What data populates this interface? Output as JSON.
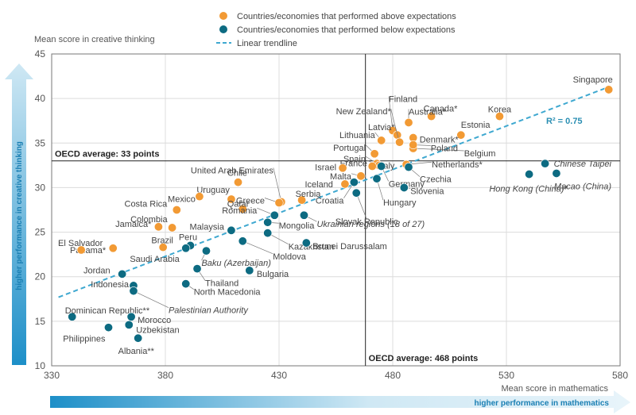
{
  "chart_data": {
    "type": "scatter",
    "ylabel": "Mean score in creative thinking",
    "xlabel": "Mean score in mathematics",
    "xlim": [
      330,
      580
    ],
    "ylim": [
      10,
      45
    ],
    "x_ticks": [
      "330",
      "380",
      "430",
      "480",
      "530",
      "580"
    ],
    "y_ticks": [
      "10",
      "15",
      "20",
      "25",
      "30",
      "35",
      "40",
      "45"
    ],
    "legend": {
      "above": "Countries/economies that performed above expectations",
      "below": "Countries/economies that performed below expectations",
      "trend": "Linear trendline"
    },
    "colors": {
      "above": "#f29a34",
      "below": "#0d6b82",
      "trend": "#3ea8d0"
    },
    "oecd_y_label": "OECD average: 33 points",
    "oecd_x_label": "OECD average: 468 points",
    "oecd_x": 468,
    "oecd_y": 33,
    "r2_label": "R² = 0.75",
    "trendline": {
      "x": [
        333,
        575
      ],
      "y": [
        17.7,
        41.3
      ]
    },
    "y_arrow_label": "higher performance in creative thinking",
    "x_arrow_label": "higher performance in mathematics",
    "points": [
      {
        "name": "Singapore",
        "x": 575,
        "y": 41,
        "group": "above"
      },
      {
        "name": "Korea",
        "x": 527,
        "y": 38,
        "group": "above"
      },
      {
        "name": "Canada*",
        "x": 497,
        "y": 38,
        "group": "above"
      },
      {
        "name": "Australia*",
        "x": 487,
        "y": 37.3,
        "group": "above"
      },
      {
        "name": "Estonia",
        "x": 510,
        "y": 35.9,
        "group": "above"
      },
      {
        "name": "Finland",
        "x": 480,
        "y": 36.4,
        "group": "above"
      },
      {
        "name": "New Zealand*",
        "x": 482,
        "y": 35.9,
        "group": "above"
      },
      {
        "name": "Latvia*",
        "x": 483,
        "y": 35.1,
        "group": "above"
      },
      {
        "name": "Denmark*",
        "x": 489,
        "y": 35.6,
        "group": "above"
      },
      {
        "name": "Belgium",
        "x": 489,
        "y": 34.4,
        "group": "above"
      },
      {
        "name": "Poland",
        "x": 489,
        "y": 34.8,
        "group": "above"
      },
      {
        "name": "Lithuania",
        "x": 475,
        "y": 35.3,
        "group": "above"
      },
      {
        "name": "Portugal",
        "x": 472,
        "y": 33.8,
        "group": "above"
      },
      {
        "name": "Spain",
        "x": 473,
        "y": 32.7,
        "group": "above"
      },
      {
        "name": "France",
        "x": 474,
        "y": 32.5,
        "group": "above"
      },
      {
        "name": "Netherlands*",
        "x": 486,
        "y": 32.6,
        "group": "above"
      },
      {
        "name": "Israel",
        "x": 458,
        "y": 32.2,
        "group": "above"
      },
      {
        "name": "Italy",
        "x": 471,
        "y": 32.4,
        "group": "above"
      },
      {
        "name": "Malta",
        "x": 466,
        "y": 31.3,
        "group": "above"
      },
      {
        "name": "Iceland",
        "x": 459,
        "y": 30.4,
        "group": "above"
      },
      {
        "name": "Chile",
        "x": 412,
        "y": 30.6,
        "group": "above"
      },
      {
        "name": "United Arab Emirates",
        "x": 431,
        "y": 28.4,
        "group": "above"
      },
      {
        "name": "Serbia",
        "x": 440,
        "y": 28.6,
        "group": "above"
      },
      {
        "name": "Uruguay",
        "x": 409,
        "y": 28.7,
        "group": "above"
      },
      {
        "name": "Greece",
        "x": 430,
        "y": 28.3,
        "group": "above"
      },
      {
        "name": "Qatar",
        "x": 414,
        "y": 27.6,
        "group": "above"
      },
      {
        "name": "Mexico",
        "x": 395,
        "y": 29,
        "group": "above"
      },
      {
        "name": "Costa Rica",
        "x": 385,
        "y": 27.5,
        "group": "above"
      },
      {
        "name": "Colombia",
        "x": 383,
        "y": 25.5,
        "group": "above"
      },
      {
        "name": "Jamaica*",
        "x": 377,
        "y": 25.6,
        "group": "above"
      },
      {
        "name": "Panama*",
        "x": 357,
        "y": 23.2,
        "group": "above"
      },
      {
        "name": "Brazil",
        "x": 379,
        "y": 23.3,
        "group": "above"
      },
      {
        "name": "El Salvador",
        "x": 343,
        "y": 23,
        "group": "above"
      },
      {
        "name": "Chinese Taipei",
        "x": 547,
        "y": 32.7,
        "group": "below"
      },
      {
        "name": "Macao (China)",
        "x": 552,
        "y": 31.6,
        "group": "below"
      },
      {
        "name": "Hong Kong (China)*",
        "x": 540,
        "y": 31.5,
        "group": "below"
      },
      {
        "name": "Czechia",
        "x": 487,
        "y": 32.3,
        "group": "below"
      },
      {
        "name": "Germany",
        "x": 475,
        "y": 32.4,
        "group": "below"
      },
      {
        "name": "Hungary",
        "x": 473,
        "y": 31,
        "group": "below"
      },
      {
        "name": "Slovenia",
        "x": 485,
        "y": 30,
        "group": "below"
      },
      {
        "name": "Croatia",
        "x": 463,
        "y": 30.6,
        "group": "below"
      },
      {
        "name": "Slovak Republic",
        "x": 464,
        "y": 29.4,
        "group": "below"
      },
      {
        "name": "Ukrainian regions (18 of 27)",
        "x": 441,
        "y": 26.9,
        "group": "below"
      },
      {
        "name": "Romania",
        "x": 428,
        "y": 26.9,
        "group": "below"
      },
      {
        "name": "Mongolia",
        "x": 425,
        "y": 26.1,
        "group": "below"
      },
      {
        "name": "Malaysia",
        "x": 409,
        "y": 25.2,
        "group": "below"
      },
      {
        "name": "Peru",
        "x": 391,
        "y": 23.5,
        "group": "below"
      },
      {
        "name": "Kazakhstan",
        "x": 425,
        "y": 24.9,
        "group": "below"
      },
      {
        "name": "Moldova",
        "x": 414,
        "y": 24,
        "group": "below"
      },
      {
        "name": "Brunei Darussalam",
        "x": 442,
        "y": 23.8,
        "group": "below"
      },
      {
        "name": "Saudi Arabia",
        "x": 389,
        "y": 23.2,
        "group": "below"
      },
      {
        "name": "Baku (Azerbaijan)",
        "x": 398,
        "y": 22.9,
        "group": "below"
      },
      {
        "name": "Thailand",
        "x": 394,
        "y": 20.9,
        "group": "below"
      },
      {
        "name": "Bulgaria",
        "x": 417,
        "y": 20.7,
        "group": "below"
      },
      {
        "name": "Jordan",
        "x": 361,
        "y": 20.3,
        "group": "below"
      },
      {
        "name": "North Macedonia",
        "x": 389,
        "y": 19.2,
        "group": "below"
      },
      {
        "name": "Indonesia",
        "x": 366,
        "y": 19,
        "group": "below"
      },
      {
        "name": "Palestinian Authority",
        "x": 366,
        "y": 18.4,
        "group": "below"
      },
      {
        "name": "Dominican Republic**",
        "x": 339,
        "y": 15.5,
        "group": "below"
      },
      {
        "name": "Morocco",
        "x": 365,
        "y": 15.5,
        "group": "below"
      },
      {
        "name": "Uzbekistan",
        "x": 364,
        "y": 14.6,
        "group": "below"
      },
      {
        "name": "Philippines",
        "x": 355,
        "y": 14.3,
        "group": "below"
      },
      {
        "name": "Albania**",
        "x": 368,
        "y": 13.1,
        "group": "below"
      }
    ]
  }
}
